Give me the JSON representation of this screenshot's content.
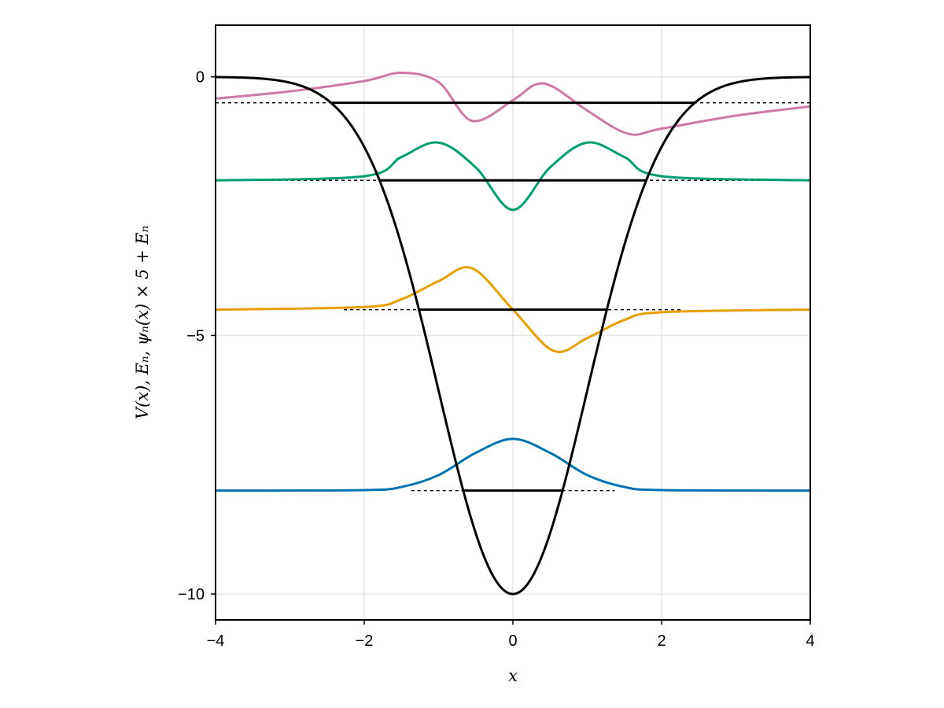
{
  "chart_data": {
    "type": "line",
    "title": "",
    "xlabel": "x",
    "ylabel": "V(x), Eₙ, ψₙ(x) × 5 + Eₙ",
    "xlim": [
      -4,
      4
    ],
    "ylim": [
      -10.5,
      1
    ],
    "xticks": [
      -4,
      -2,
      0,
      2,
      4
    ],
    "xtick_labels": [
      "−4",
      "−2",
      "0",
      "2",
      "4"
    ],
    "yticks": [
      0,
      -5,
      -10
    ],
    "ytick_labels": [
      "0",
      "−5",
      "−10"
    ],
    "grid": true,
    "potential": {
      "formula": "V(x) = -10 exp(-x²/2)",
      "depth": 10,
      "width": 1,
      "color": "#000000"
    },
    "wavefunction_scale": 5,
    "levels": [
      {
        "n": 0,
        "energy": -8.0,
        "color": "#0072B2",
        "x": [
          -4,
          -2,
          -1.5,
          -1,
          -0.5,
          0,
          0.5,
          1,
          1.5,
          2,
          4
        ],
        "y": [
          -8.0,
          -7.99,
          -7.93,
          -7.7,
          -7.27,
          -7.0,
          -7.27,
          -7.7,
          -7.93,
          -7.99,
          -8.0
        ]
      },
      {
        "n": 1,
        "energy": -4.5,
        "color": "#E69F00",
        "x": [
          -4,
          -2,
          -1.5,
          -1,
          -0.55,
          0,
          0.55,
          1,
          1.5,
          2,
          4
        ],
        "y": [
          -4.5,
          -4.45,
          -4.3,
          -3.95,
          -3.7,
          -4.5,
          -5.3,
          -5.05,
          -4.7,
          -4.55,
          -4.5
        ]
      },
      {
        "n": 2,
        "energy": -2.0,
        "color": "#009E73",
        "x": [
          -4,
          -2,
          -1.5,
          -1,
          -0.5,
          0,
          0.5,
          1,
          1.5,
          2,
          4
        ],
        "y": [
          -2.0,
          -1.92,
          -1.55,
          -1.27,
          -1.75,
          -2.57,
          -1.75,
          -1.27,
          -1.55,
          -1.92,
          -2.0
        ]
      },
      {
        "n": 3,
        "energy": -0.5,
        "color": "#CC79A7",
        "x": [
          -4,
          -3,
          -2,
          -1.5,
          -1,
          -0.55,
          0,
          0.3,
          0.55,
          1,
          1.55,
          2,
          3,
          4
        ],
        "y": [
          -0.42,
          -0.28,
          -0.08,
          0.08,
          -0.1,
          -0.85,
          -0.45,
          -0.15,
          -0.2,
          -0.65,
          -1.1,
          -1.0,
          -0.75,
          -0.57
        ]
      }
    ]
  }
}
